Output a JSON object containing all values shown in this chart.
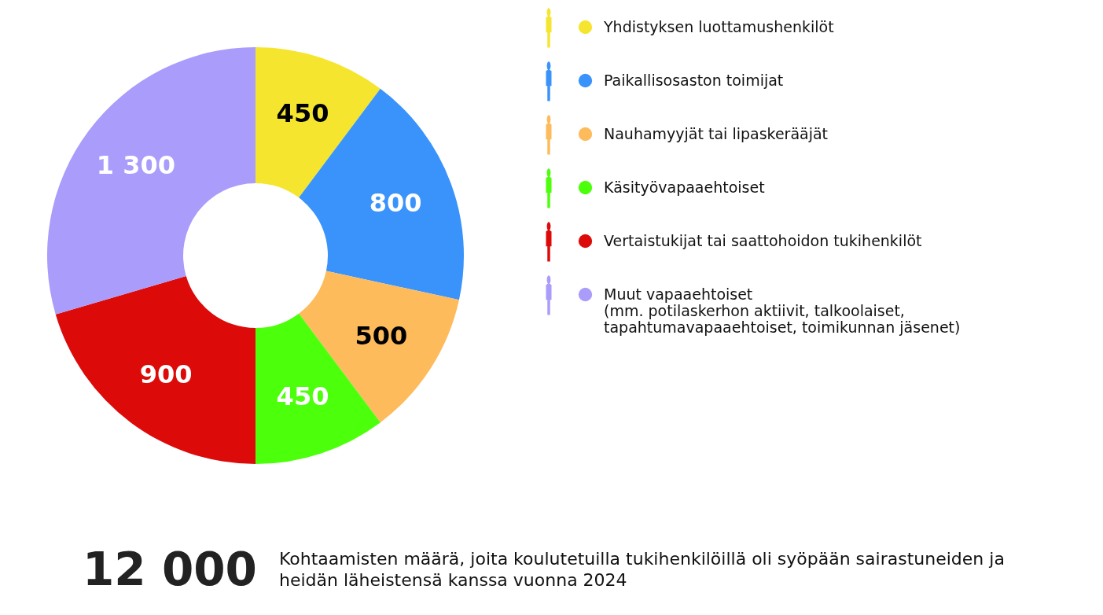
{
  "chart_data": {
    "type": "donut",
    "categories": [
      "Yhdistyksen luottamushenkilöt",
      "Paikallisosaston toimijat",
      "Nauhamyyjät tai lipaskerääjät",
      "Käsityövapaaehtoiset",
      "Vertaistukijat tai saattohoidon tukihenkilöt",
      "Muut vapaaehtoiset\n(mm. potilaskerhon aktiivit, talkoolaiset,\ntapahtumavapaaehtoiset, toimikunnan jäsenet)"
    ],
    "values": [
      450,
      800,
      500,
      450,
      900,
      1300
    ],
    "value_labels": [
      "450",
      "800",
      "500",
      "450",
      "900",
      "1 300"
    ],
    "colors": [
      "#f5e52f",
      "#3a93fb",
      "#fdbb5c",
      "#4cff0a",
      "#dd0a0a",
      "#a99cfb"
    ],
    "legend": "right",
    "annotations": [
      "12 000",
      "Kohtaamisten määrä, joita koulutetuilla tukihenkilöillä oli syöpään sairastuneiden ja heidän läheistensä kanssa vuonna 2024"
    ]
  }
}
